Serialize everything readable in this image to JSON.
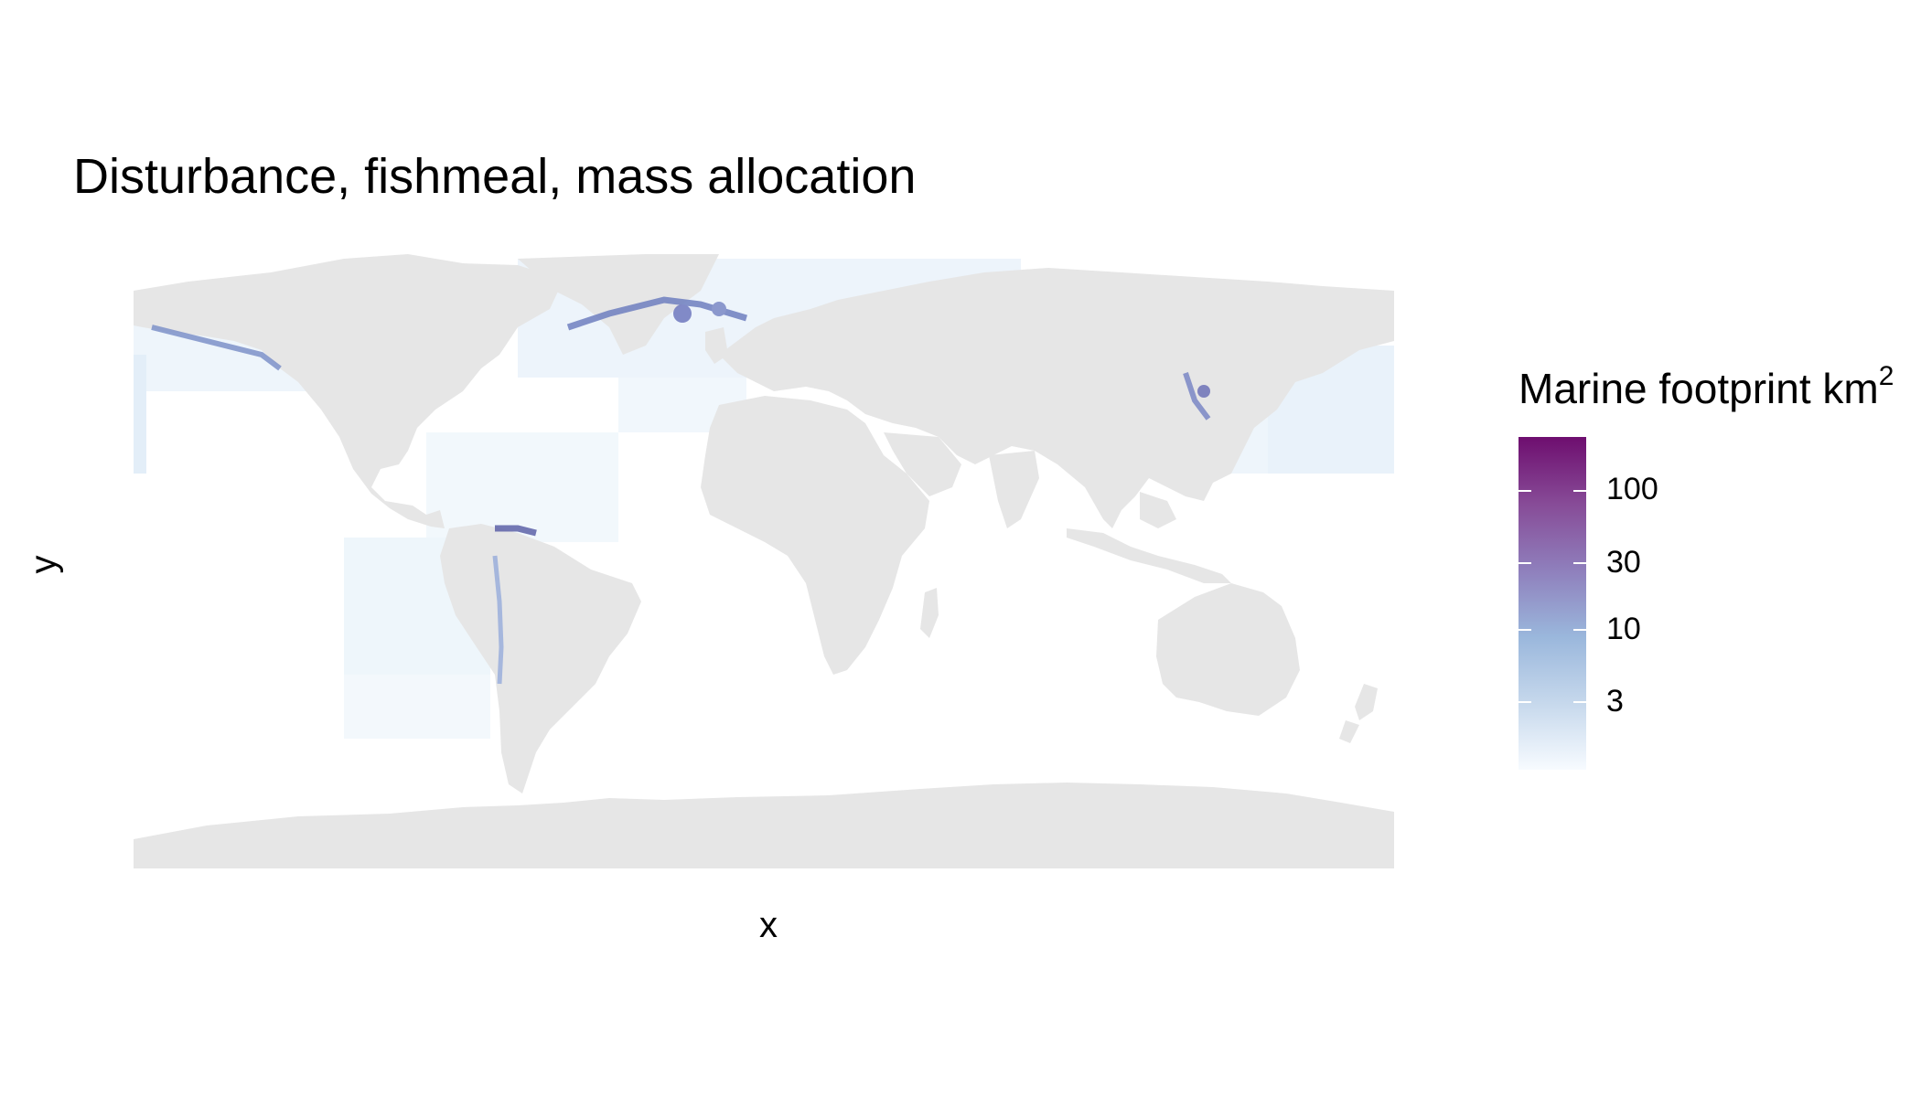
{
  "title": "Disturbance, fishmeal, mass allocation",
  "axes": {
    "xlabel": "x",
    "ylabel": "y"
  },
  "legend": {
    "title": "Marine footprint km",
    "title_superscript": "2",
    "scale": "log",
    "ticks": [
      "100",
      "30",
      "10",
      "3"
    ],
    "colors": [
      "#f7fbff",
      "#9ab7dc",
      "#8f7fbc",
      "#874b97",
      "#6e0e6f"
    ]
  },
  "map": {
    "land_color": "#e6e6e6",
    "ocean_color": "#ffffff",
    "hotspot_color": "#4a5fb0"
  }
}
